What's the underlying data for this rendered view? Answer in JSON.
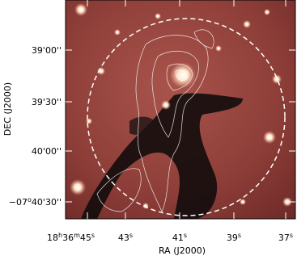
{
  "figure": {
    "x_axis": {
      "label": "RA (J2000)",
      "ticks": [
        {
          "parts": [
            "18",
            "h",
            "36",
            "m",
            "45",
            "s"
          ]
        },
        {
          "parts": [
            "43",
            "s"
          ]
        },
        {
          "parts": [
            "41",
            "s"
          ]
        },
        {
          "parts": [
            "39",
            "s"
          ]
        },
        {
          "parts": [
            "37",
            "s"
          ]
        }
      ]
    },
    "y_axis": {
      "label": "DEC (J2000)",
      "ticks": [
        {
          "parts": [
            "39'00''"
          ]
        },
        {
          "parts": [
            "39'30''"
          ]
        },
        {
          "parts": [
            "40'00''"
          ]
        },
        {
          "parts": [
            "−07",
            "o",
            "40'30''"
          ]
        }
      ]
    }
  }
}
